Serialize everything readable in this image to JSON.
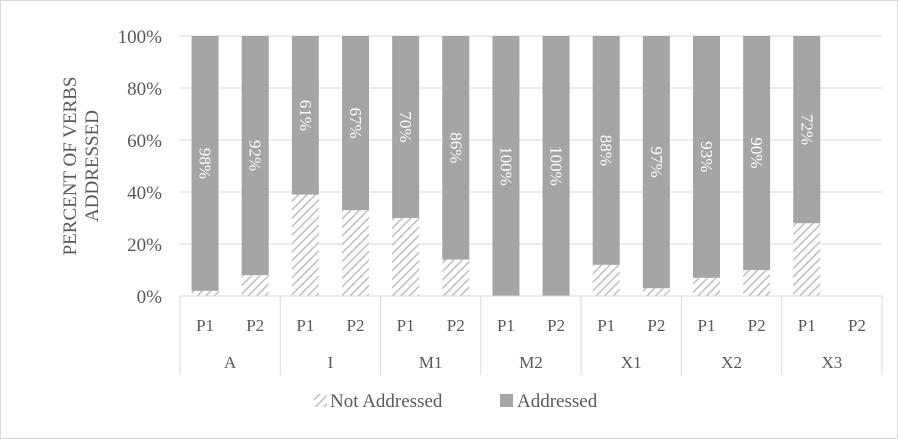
{
  "chart_data": {
    "type": "bar",
    "stacked": true,
    "percent_stacked": true,
    "ylabel": "PERCENT OF VERBS ADDRESSED",
    "ylim": [
      0,
      100
    ],
    "yticks": [
      "0%",
      "20%",
      "40%",
      "60%",
      "80%",
      "100%"
    ],
    "groups": [
      "A",
      "I",
      "M1",
      "M2",
      "X1",
      "X2",
      "X3"
    ],
    "categories": [
      "P1",
      "P2",
      "P1",
      "P2",
      "P1",
      "P2",
      "P1",
      "P2",
      "P1",
      "P2",
      "P1",
      "P2",
      "P1",
      "P2"
    ],
    "series": [
      {
        "name": "Not Addressed",
        "values": [
          2,
          8,
          39,
          33,
          30,
          14,
          0,
          0,
          12,
          3,
          7,
          10,
          28,
          null
        ],
        "color": "#bfbfbf",
        "pattern": "diagonal-hatch"
      },
      {
        "name": "Addressed",
        "values": [
          98,
          92,
          61,
          67,
          70,
          86,
          100,
          100,
          88,
          97,
          93,
          90,
          72,
          null
        ],
        "color": "#a5a5a5",
        "labels": [
          "98%",
          "92%",
          "61%",
          "67%",
          "70%",
          "86%",
          "100%",
          "100%",
          "88%",
          "97%",
          "93%",
          "90%",
          "72%",
          ""
        ]
      }
    ],
    "grid": true,
    "legend": "bottom"
  }
}
